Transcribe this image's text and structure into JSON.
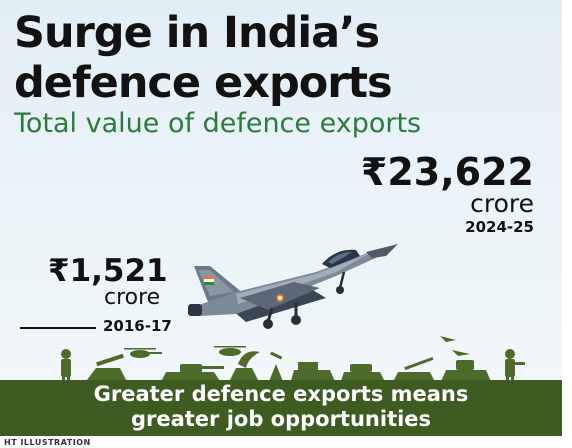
{
  "headline": {
    "line1": "Surge in India’s",
    "line2": "defence exports"
  },
  "subtitle": "Total value of defence exports",
  "latest": {
    "value": "₹23,622",
    "unit": "crore",
    "year": "2024-25"
  },
  "earlier": {
    "value": "₹1,521",
    "unit": "crore",
    "year": "2016-17"
  },
  "footer": {
    "line1": "Greater defence exports means",
    "line2": "greater job opportunities"
  },
  "credit": "HT ILLUSTRATION",
  "colors": {
    "subtitle_green": "#2e7a3c",
    "footer_band": "#3e5c22",
    "silhouette": "#4f6b2c"
  },
  "icons": [
    "fighter-jet-icon",
    "military-silhouettes-icon"
  ]
}
